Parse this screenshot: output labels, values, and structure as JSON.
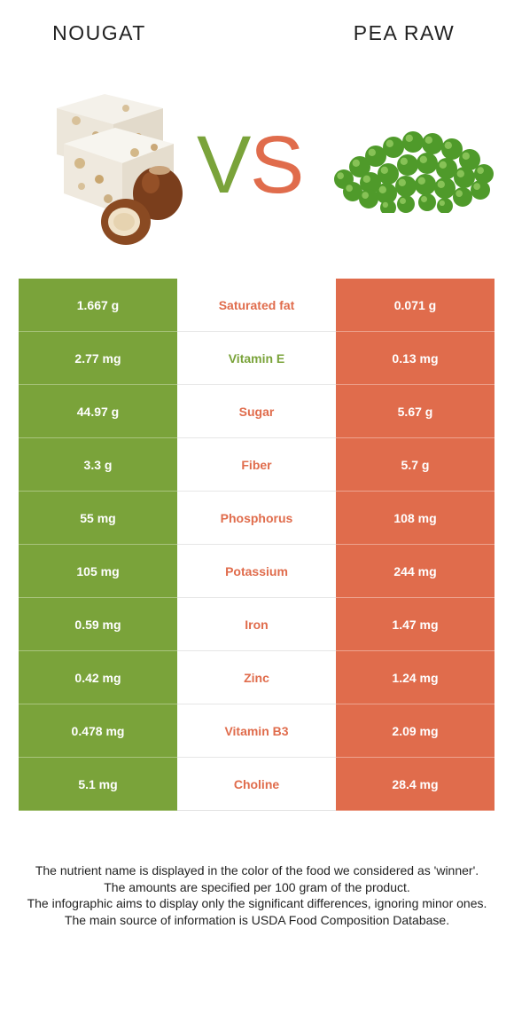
{
  "header": {
    "left_food": "NOUGAT",
    "right_food": "PEA RAW",
    "vs_v": "V",
    "vs_s": "S"
  },
  "colors": {
    "left_winner": "#7aa33a",
    "right_winner": "#e06c4c"
  },
  "images": {
    "left": "nougat-with-hazelnuts-image",
    "right": "green-peas-image"
  },
  "rows": [
    {
      "left": "1.667 g",
      "nutrient": "Saturated fat",
      "right": "0.071 g",
      "winner": "right"
    },
    {
      "left": "2.77 mg",
      "nutrient": "Vitamin E",
      "right": "0.13 mg",
      "winner": "left"
    },
    {
      "left": "44.97 g",
      "nutrient": "Sugar",
      "right": "5.67 g",
      "winner": "right"
    },
    {
      "left": "3.3 g",
      "nutrient": "Fiber",
      "right": "5.7 g",
      "winner": "right"
    },
    {
      "left": "55 mg",
      "nutrient": "Phosphorus",
      "right": "108 mg",
      "winner": "right"
    },
    {
      "left": "105 mg",
      "nutrient": "Potassium",
      "right": "244 mg",
      "winner": "right"
    },
    {
      "left": "0.59 mg",
      "nutrient": "Iron",
      "right": "1.47 mg",
      "winner": "right"
    },
    {
      "left": "0.42 mg",
      "nutrient": "Zinc",
      "right": "1.24 mg",
      "winner": "right"
    },
    {
      "left": "0.478 mg",
      "nutrient": "Vitamin B3",
      "right": "2.09 mg",
      "winner": "right"
    },
    {
      "left": "5.1 mg",
      "nutrient": "Choline",
      "right": "28.4 mg",
      "winner": "right"
    }
  ],
  "notes": [
    "The nutrient name is displayed in the color of the food we considered as 'winner'.",
    "The amounts are specified per 100 gram of the product.",
    "The infographic aims to display only the significant differences, ignoring minor ones.",
    "The main source of information is USDA Food Composition Database."
  ]
}
